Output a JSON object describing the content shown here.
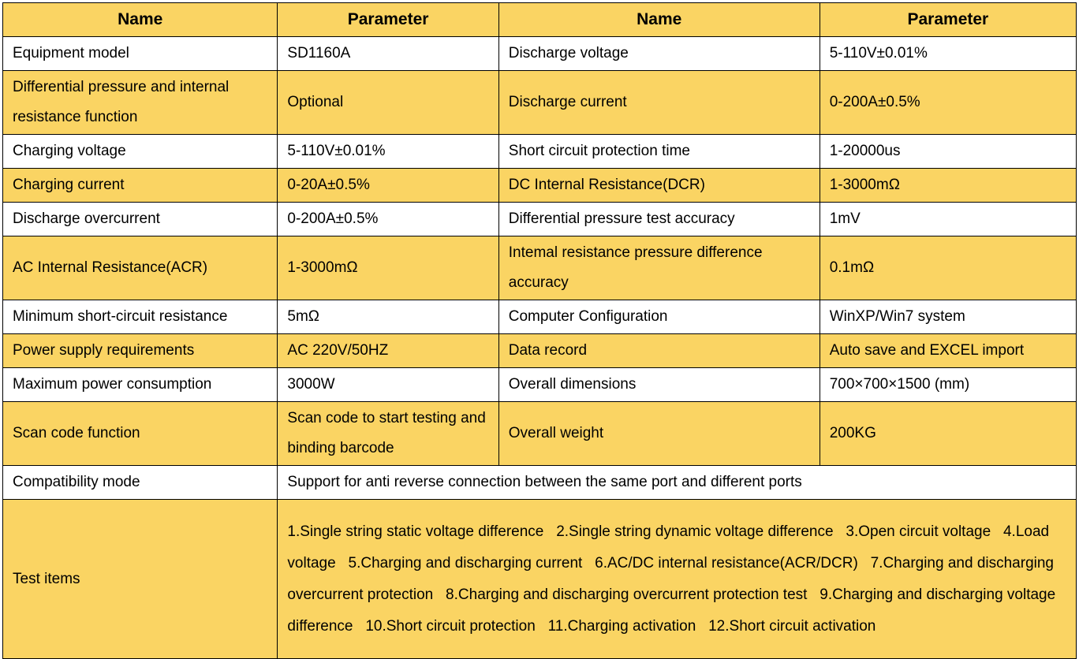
{
  "colors": {
    "accent_yellow": "#FAD463",
    "border_black": "#000000",
    "row_white": "#FFFFFF",
    "text_black": "#000000"
  },
  "table": {
    "header": {
      "name_left": "Name",
      "parameter_left": "Parameter",
      "name_right": "Name",
      "parameter_right": "Parameter"
    },
    "rows": [
      {
        "c1": "Equipment model",
        "c2": "SD1160A",
        "c3": "Discharge voltage",
        "c4": "5-110V±0.01%"
      },
      {
        "c1": "Differential pressure and internal resistance function",
        "c2": "Optional",
        "c3": "Discharge current",
        "c4": "0-200A±0.5%"
      },
      {
        "c1": "Charging voltage",
        "c2": "5-110V±0.01%",
        "c3": "Short circuit protection time",
        "c4": "1-20000us"
      },
      {
        "c1": "Charging current",
        "c2": "0-20A±0.5%",
        "c3": "DC Internal Resistance(DCR)",
        "c4": "1-3000mΩ"
      },
      {
        "c1": "Discharge overcurrent",
        "c2": "0-200A±0.5%",
        "c3": "Differential pressure test accuracy",
        "c4": "1mV"
      },
      {
        "c1": "AC Internal Resistance(ACR)",
        "c2": "1-3000mΩ",
        "c3": "Intemal resistance pressure difference accuracy",
        "c4": "0.1mΩ"
      },
      {
        "c1": "Minimum short-circuit resistance",
        "c2": "5mΩ",
        "c3": "Computer Configuration",
        "c4": "WinXP/Win7 system"
      },
      {
        "c1": "Power supply requirements",
        "c2": "AC 220V/50HZ",
        "c3": "Data record",
        "c4": "Auto save and EXCEL import"
      },
      {
        "c1": "Maximum power consumption",
        "c2": "3000W",
        "c3": "Overall dimensions",
        "c4": "700×700×1500 (mm)"
      },
      {
        "c1": "Scan code function",
        "c2": "Scan code to start testing and binding barcode",
        "c3": "Overall weight",
        "c4": "200KG"
      }
    ],
    "compatibility": {
      "name": "Compatibility mode",
      "value": "Support for anti reverse connection between the same port and different ports"
    },
    "test_items": {
      "name": "Test items",
      "value": "1.Single string static voltage difference   2.Single string dynamic voltage difference   3.Open circuit voltage   4.Load voltage   5.Charging and discharging current   6.AC/DC internal resistance(ACR/DCR)   7.Charging and discharging overcurrent protection   8.Charging and discharging overcurrent protection test   9.Charging and discharging voltage difference   10.Short circuit protection   11.Charging activation   12.Short circuit activation"
    }
  }
}
